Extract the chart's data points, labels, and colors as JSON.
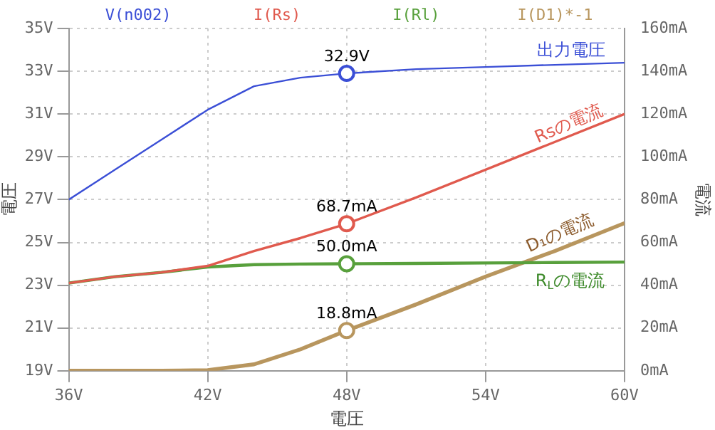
{
  "chart_data": {
    "type": "line",
    "xlabel": "電圧",
    "ylabel": "電圧",
    "y2label": "電流",
    "x": [
      36,
      38,
      40,
      42,
      44,
      46,
      48,
      51,
      54,
      57,
      60
    ],
    "xlim": [
      36,
      60
    ],
    "xticks": [
      {
        "value": 36,
        "label": "36V"
      },
      {
        "value": 42,
        "label": "42V"
      },
      {
        "value": 48,
        "label": "48V"
      },
      {
        "value": 54,
        "label": "54V"
      },
      {
        "value": 60,
        "label": "60V"
      }
    ],
    "ylim": [
      19,
      35
    ],
    "yticks": [
      {
        "value": 19,
        "label": "19V"
      },
      {
        "value": 21,
        "label": "21V"
      },
      {
        "value": 23,
        "label": "23V"
      },
      {
        "value": 25,
        "label": "25V"
      },
      {
        "value": 27,
        "label": "27V"
      },
      {
        "value": 29,
        "label": "29V"
      },
      {
        "value": 31,
        "label": "31V"
      },
      {
        "value": 33,
        "label": "33V"
      },
      {
        "value": 35,
        "label": "35V"
      }
    ],
    "y2lim": [
      0,
      160
    ],
    "y2ticks": [
      {
        "value": 0,
        "label": "0mA"
      },
      {
        "value": 20,
        "label": "20mA"
      },
      {
        "value": 40,
        "label": "40mA"
      },
      {
        "value": 60,
        "label": "60mA"
      },
      {
        "value": 80,
        "label": "80mA"
      },
      {
        "value": 100,
        "label": "100mA"
      },
      {
        "value": 120,
        "label": "120mA"
      },
      {
        "value": 140,
        "label": "140mA"
      },
      {
        "value": 160,
        "label": "160mA"
      }
    ],
    "grid": true,
    "legend": "top",
    "series": [
      {
        "name": "V(n002)",
        "color": "#3b4fd6",
        "values": [
          27.0,
          28.4,
          29.8,
          31.2,
          32.3,
          32.7,
          32.9,
          33.1,
          33.2,
          33.3,
          33.4
        ],
        "value_labels": [
          null,
          null,
          null,
          null,
          null,
          null,
          "32.9V",
          null,
          null,
          null,
          null
        ]
      },
      {
        "name": "I(Rs)",
        "color": "#e05a4e",
        "axis": "y2",
        "values": [
          41,
          44,
          46,
          49,
          56,
          62,
          68.7,
          81,
          94,
          107,
          120
        ],
        "value_labels": [
          null,
          null,
          null,
          null,
          null,
          null,
          "68.7mA",
          null,
          null,
          null,
          null
        ]
      },
      {
        "name": "I(Rl)",
        "color": "#58a03c",
        "axis": "y2",
        "values": [
          41,
          44,
          46,
          48.5,
          49.6,
          49.9,
          50.0,
          50.2,
          50.4,
          50.6,
          50.8
        ],
        "value_labels": [
          null,
          null,
          null,
          null,
          null,
          null,
          "50.0mA",
          null,
          null,
          null,
          null
        ]
      },
      {
        "name": "I(D1)*-1",
        "color": "#b8965e",
        "axis": "y2",
        "values": [
          0,
          0,
          0,
          0.3,
          3,
          10,
          18.8,
          31,
          44,
          56,
          69
        ],
        "value_labels": [
          null,
          null,
          null,
          null,
          null,
          null,
          "18.8mA",
          null,
          null,
          null,
          null
        ]
      }
    ],
    "annotations": [
      "出力電圧",
      "Rsの電流",
      "D₁の電流",
      "R$_{L}$の電流"
    ]
  }
}
